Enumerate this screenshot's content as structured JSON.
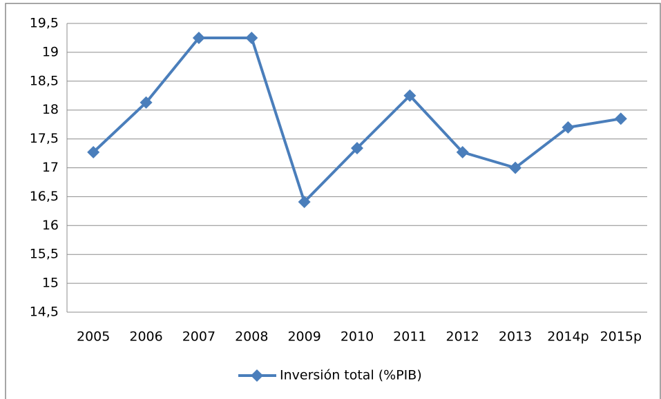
{
  "chart_data": {
    "type": "line",
    "categories": [
      "2005",
      "2006",
      "2007",
      "2008",
      "2009",
      "2010",
      "2011",
      "2012",
      "2013",
      "2014p",
      "2015p"
    ],
    "series": [
      {
        "name": "Inversión total (%PIB)",
        "color": "#4a7ebb",
        "values": [
          17.27,
          18.13,
          19.25,
          19.25,
          16.41,
          17.34,
          18.25,
          17.27,
          17.0,
          17.7,
          17.85
        ]
      }
    ],
    "ylim": [
      14.5,
      19.5
    ],
    "yticks": [
      {
        "value": 14.5,
        "label": "14,5"
      },
      15,
      {
        "value": 15.5,
        "label": "15,5"
      },
      16,
      {
        "value": 16.5,
        "label": "16,5"
      },
      17,
      {
        "value": 17.5,
        "label": "17,5"
      },
      18,
      {
        "value": 18.5,
        "label": "18,5"
      },
      19,
      {
        "value": 19.5,
        "label": "19,5"
      }
    ],
    "grid": true,
    "legend": "bottom"
  }
}
